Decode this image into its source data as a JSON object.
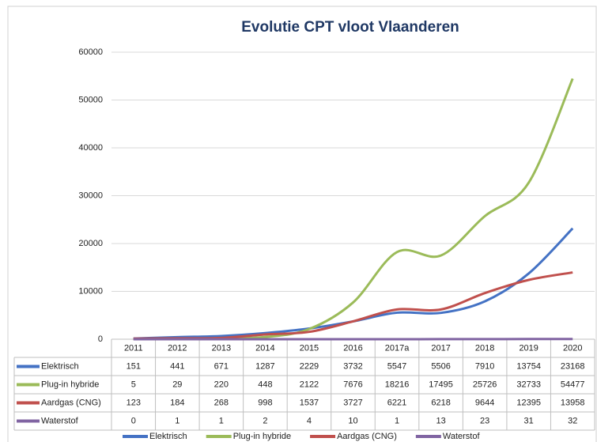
{
  "chart_data": {
    "type": "line",
    "title": "Evolutie CPT vloot Vlaanderen",
    "categories": [
      "2011",
      "2012",
      "2013",
      "2014",
      "2015",
      "2016",
      "2017a",
      "2017",
      "2018",
      "2019",
      "2020"
    ],
    "series": [
      {
        "name": "Elektrisch",
        "color": "#4472c4",
        "values": [
          151,
          441,
          671,
          1287,
          2229,
          3732,
          5547,
          5506,
          7910,
          13754,
          23168
        ]
      },
      {
        "name": "Plug-in hybride",
        "color": "#9bbb59",
        "values": [
          5,
          29,
          220,
          448,
          2122,
          7676,
          18216,
          17495,
          25726,
          32733,
          54477
        ]
      },
      {
        "name": "Aardgas (CNG)",
        "color": "#c0504d",
        "values": [
          123,
          184,
          268,
          998,
          1537,
          3727,
          6221,
          6218,
          9644,
          12395,
          13958
        ]
      },
      {
        "name": "Waterstof",
        "color": "#8064a2",
        "values": [
          0,
          1,
          1,
          2,
          4,
          10,
          1,
          13,
          23,
          31,
          32
        ]
      }
    ],
    "ylim": [
      0,
      60000
    ],
    "yticks": [
      0,
      10000,
      20000,
      30000,
      40000,
      50000,
      60000
    ],
    "grid": true,
    "smooth": true
  }
}
